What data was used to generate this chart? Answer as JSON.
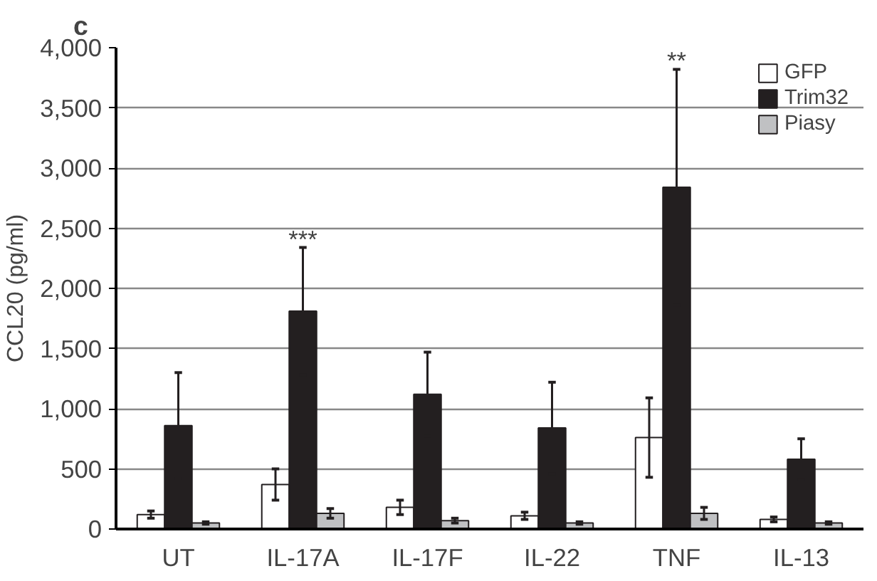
{
  "chart_data": {
    "type": "bar",
    "ylabel": "CCL20 (pg/ml)",
    "categories": [
      "UT",
      "IL-17A",
      "IL-17F",
      "IL-22",
      "TNF",
      "IL-13"
    ],
    "series": [
      {
        "name": "GFP",
        "color": "#ffffff",
        "values": [
          120,
          370,
          180,
          110,
          760,
          80
        ],
        "errors": [
          30,
          130,
          60,
          30,
          330,
          20
        ]
      },
      {
        "name": "Trim32",
        "color": "#231f20",
        "values": [
          860,
          1810,
          1120,
          840,
          2840,
          580
        ],
        "errors": [
          440,
          530,
          350,
          380,
          980,
          170
        ]
      },
      {
        "name": "Piasy",
        "color": "#c0c1c3",
        "values": [
          50,
          130,
          70,
          50,
          130,
          50
        ],
        "errors": [
          10,
          40,
          20,
          10,
          50,
          10
        ]
      }
    ],
    "ylim": [
      0,
      4000
    ],
    "yticks": [
      0,
      500,
      {
        "value": 1000,
        "label": "1,000"
      },
      {
        "value": 1500,
        "label": "1,500"
      },
      {
        "value": 2000,
        "label": "2,000"
      },
      {
        "value": 2500,
        "label": "2,500"
      },
      {
        "value": 3000,
        "label": "3,000"
      },
      {
        "value": 3500,
        "label": "3,500"
      },
      {
        "value": 4000,
        "label": "4,000"
      }
    ],
    "grid": "y",
    "legend": "top right",
    "annotations": [
      "c",
      {
        "text": "***",
        "x": "IL-17A",
        "y": 2340
      },
      {
        "text": "**",
        "x": "TNF",
        "y": 3820
      }
    ]
  }
}
